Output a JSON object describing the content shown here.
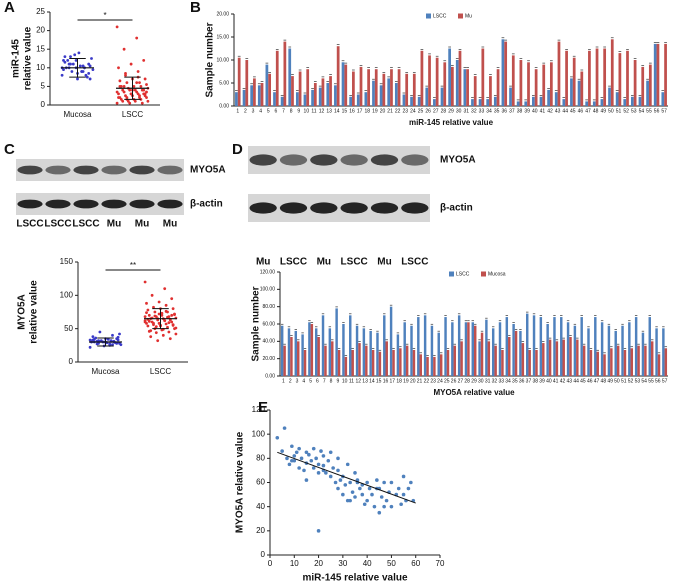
{
  "chart_data": [
    {
      "type": "strip",
      "panel": "A",
      "ylabel": [
        "miR-145",
        "relative value"
      ],
      "categories": [
        "Mucosa",
        "LSCC"
      ],
      "ylim": [
        0,
        25
      ],
      "yticks": [
        0,
        5,
        10,
        15,
        20,
        25
      ],
      "significance": "*",
      "groups": [
        {
          "color": "#3a3ac8",
          "mean": 10,
          "sd": 2.5,
          "values": [
            8,
            9,
            10,
            11,
            12,
            9.5,
            10.5,
            13,
            7,
            8.5,
            11.5,
            10,
            9,
            12.5,
            14,
            10,
            8,
            11,
            9.5,
            10.5,
            12,
            7.5,
            13.5,
            10,
            9,
            11,
            8.5,
            10,
            12,
            9,
            11,
            10.5,
            7,
            13,
            10
          ]
        },
        {
          "color": "#e03030",
          "mean": 4.5,
          "sd": 3,
          "values": [
            21,
            18,
            15,
            12,
            11,
            10,
            9,
            8,
            7,
            7,
            6.5,
            6,
            6,
            5.5,
            5,
            5,
            5,
            4.5,
            4.5,
            4,
            4,
            4,
            4,
            3.5,
            3.5,
            3.5,
            3,
            3,
            3,
            3,
            2.5,
            2.5,
            2.5,
            2,
            2,
            2,
            2,
            1.5,
            1.5,
            1.5,
            1,
            1,
            1,
            1,
            0.5,
            0.5,
            0.5,
            6,
            5,
            4,
            3,
            2,
            7.5,
            8.5,
            3,
            4,
            5,
            2.5,
            1.5,
            3.5
          ]
        }
      ]
    },
    {
      "type": "bar",
      "panel": "B",
      "ylabel": "Sample number",
      "xlabel": "miR-145 relative value",
      "categories": [
        "1",
        "2",
        "3",
        "4",
        "5",
        "6",
        "7",
        "8",
        "9",
        "10",
        "11",
        "12",
        "13",
        "14",
        "15",
        "16",
        "17",
        "18",
        "19",
        "20",
        "21",
        "22",
        "23",
        "24",
        "25",
        "26",
        "27",
        "28",
        "29",
        "30",
        "31",
        "32",
        "33",
        "34",
        "35",
        "36",
        "37",
        "38",
        "39",
        "40",
        "41",
        "42",
        "43",
        "44",
        "45",
        "46",
        "47",
        "48",
        "49",
        "50",
        "51",
        "52",
        "53",
        "54",
        "55",
        "56",
        "57"
      ],
      "ylim": [
        0,
        20
      ],
      "yticks": [
        {
          "value": 0,
          "label": "0.00"
        },
        {
          "value": 5,
          "label": "5.00"
        },
        {
          "value": 10,
          "label": "10.00"
        },
        {
          "value": 15,
          "label": "15.00"
        },
        {
          "value": 20,
          "label": "20.00"
        }
      ],
      "series": [
        {
          "name": "LSCC",
          "color": "#4f81bd",
          "values": [
            3,
            3.5,
            4.5,
            4.5,
            9,
            3,
            2,
            12.5,
            3,
            2.5,
            3.5,
            4,
            5,
            4.5,
            9.5,
            2,
            2.5,
            3,
            5.5,
            4.5,
            6,
            5,
            2.5,
            2,
            2,
            4,
            1.5,
            4,
            12.5,
            10,
            8,
            1.5,
            1.5,
            1.5,
            2,
            14.5,
            4,
            1,
            1,
            2,
            2,
            3.5,
            3,
            1.5,
            6,
            5.5,
            1,
            1,
            1.5,
            4,
            3,
            1.5,
            2,
            2,
            5.5,
            13.5,
            3
          ]
        },
        {
          "name": "Mu",
          "color": "#c0504d",
          "values": [
            10.5,
            10,
            6,
            5,
            7,
            12,
            14,
            6.5,
            7.5,
            8,
            5,
            6,
            6.5,
            13,
            9,
            7.5,
            8.5,
            8,
            8,
            7,
            8,
            8,
            7,
            7,
            12,
            11,
            10.5,
            9.5,
            8.5,
            12,
            8,
            6.5,
            12.5,
            6.5,
            8,
            14,
            11,
            10,
            9.5,
            8,
            9,
            9.5,
            14,
            12,
            10.5,
            7.5,
            12,
            12.5,
            12.5,
            14.5,
            11.5,
            12,
            10,
            8.5,
            9,
            13.5,
            13.5
          ]
        }
      ]
    },
    {
      "type": "strip",
      "ylabel": [
        "MYO5A",
        "relative value"
      ],
      "categories": [
        "Mucosa",
        "LSCC"
      ],
      "ylim": [
        0,
        150
      ],
      "yticks": [
        0,
        50,
        100,
        150
      ],
      "significance": "**",
      "groups": [
        {
          "color": "#3a3ac8",
          "mean": 30,
          "sd": 6,
          "values": [
            22,
            25,
            27,
            28,
            30,
            30,
            31,
            32,
            33,
            35,
            38,
            40,
            45,
            28,
            29,
            30,
            31,
            32,
            26,
            34,
            36,
            29,
            30,
            33,
            27,
            31,
            35,
            24,
            30,
            32,
            28,
            37,
            30,
            33,
            26,
            31,
            42,
            29,
            34,
            30
          ]
        },
        {
          "color": "#e03030",
          "mean": 65,
          "sd": 15,
          "values": [
            120,
            110,
            100,
            95,
            90,
            88,
            85,
            82,
            80,
            80,
            78,
            75,
            75,
            72,
            70,
            70,
            68,
            68,
            66,
            65,
            65,
            64,
            63,
            62,
            62,
            60,
            60,
            58,
            58,
            57,
            56,
            55,
            55,
            54,
            52,
            50,
            50,
            48,
            46,
            45,
            44,
            42,
            40,
            38,
            35,
            32,
            60,
            62,
            66,
            70,
            72,
            74,
            76,
            58,
            56,
            54,
            64,
            67,
            69,
            71,
            73,
            61,
            59,
            53,
            51,
            49,
            47,
            63,
            65,
            68
          ]
        }
      ]
    },
    {
      "type": "bar",
      "ylabel": "Sample number",
      "xlabel": "MYO5A relative value",
      "categories": [
        "1",
        "2",
        "3",
        "4",
        "5",
        "6",
        "7",
        "8",
        "9",
        "10",
        "11",
        "12",
        "13",
        "14",
        "15",
        "16",
        "17",
        "18",
        "19",
        "20",
        "21",
        "22",
        "23",
        "24",
        "25",
        "26",
        "27",
        "28",
        "29",
        "30",
        "31",
        "32",
        "33",
        "34",
        "35",
        "36",
        "37",
        "38",
        "39",
        "40",
        "41",
        "42",
        "43",
        "44",
        "45",
        "46",
        "47",
        "48",
        "49",
        "50",
        "51",
        "52",
        "53",
        "54",
        "55",
        "56",
        "57"
      ],
      "ylim": [
        0,
        120
      ],
      "yticks": [
        {
          "value": 0,
          "label": "0.00"
        },
        {
          "value": 20,
          "label": "20.00"
        },
        {
          "value": 40,
          "label": "40.00"
        },
        {
          "value": 60,
          "label": "60.00"
        },
        {
          "value": 80,
          "label": "80.00"
        },
        {
          "value": 100,
          "label": "100.00"
        },
        {
          "value": 120,
          "label": "120.00"
        }
      ],
      "series": [
        {
          "name": "LSCC",
          "color": "#4f81bd",
          "values": [
            58,
            55,
            52,
            48,
            62,
            55,
            70,
            55,
            78,
            60,
            70,
            58,
            55,
            52,
            50,
            70,
            80,
            48,
            62,
            58,
            68,
            70,
            58,
            50,
            68,
            62,
            70,
            62,
            62,
            40,
            65,
            55,
            62,
            68,
            60,
            52,
            72,
            70,
            68,
            60,
            68,
            68,
            62,
            58,
            68,
            55,
            68,
            62,
            58,
            52,
            58,
            62,
            68,
            50,
            68,
            55,
            55
          ]
        },
        {
          "name": "Mucosa",
          "color": "#c0504d",
          "values": [
            35,
            45,
            40,
            30,
            60,
            45,
            35,
            40,
            30,
            22,
            30,
            38,
            35,
            30,
            28,
            40,
            30,
            32,
            35,
            30,
            25,
            22,
            22,
            25,
            30,
            35,
            40,
            62,
            58,
            50,
            40,
            35,
            30,
            45,
            52,
            38,
            30,
            30,
            38,
            42,
            40,
            42,
            45,
            42,
            35,
            30,
            28,
            25,
            32,
            35,
            30,
            32,
            35,
            35,
            40,
            25,
            32
          ]
        }
      ]
    },
    {
      "type": "scatter",
      "panel": "E",
      "xlabel": "miR-145 relative value",
      "ylabel": "MYO5A relative value",
      "color": "#4f81bd",
      "xlim": [
        0,
        70
      ],
      "xticks": [
        0,
        10,
        20,
        30,
        40,
        50,
        60,
        70
      ],
      "ylim": [
        0,
        120
      ],
      "yticks": [
        0,
        20,
        40,
        60,
        80,
        100,
        120
      ],
      "x": [
        3,
        5,
        6,
        7,
        8,
        9,
        10,
        10,
        11,
        12,
        12,
        13,
        14,
        15,
        15,
        16,
        17,
        18,
        18,
        19,
        20,
        20,
        21,
        22,
        22,
        23,
        24,
        25,
        25,
        26,
        27,
        28,
        28,
        29,
        30,
        30,
        31,
        32,
        32,
        33,
        34,
        35,
        35,
        36,
        37,
        38,
        38,
        39,
        40,
        40,
        41,
        42,
        43,
        44,
        45,
        45,
        46,
        47,
        48,
        49,
        50,
        50,
        52,
        53,
        54,
        55,
        55,
        56,
        57,
        58,
        59,
        20,
        22,
        28,
        15,
        9,
        33,
        44,
        36,
        47
      ],
      "y": [
        97,
        86,
        105,
        80,
        75,
        90,
        82,
        78,
        85,
        72,
        88,
        80,
        70,
        85,
        76,
        83,
        78,
        88,
        72,
        80,
        75,
        20,
        86,
        70,
        82,
        68,
        78,
        65,
        85,
        72,
        60,
        70,
        55,
        62,
        50,
        65,
        58,
        75,
        45,
        60,
        52,
        48,
        68,
        62,
        55,
        50,
        58,
        42,
        60,
        45,
        55,
        50,
        40,
        62,
        35,
        55,
        48,
        60,
        45,
        52,
        40,
        60,
        50,
        55,
        42,
        50,
        65,
        45,
        55,
        60,
        45,
        68,
        74,
        80,
        62,
        78,
        45,
        55,
        60,
        40
      ],
      "trendline": {
        "x": [
          3,
          60
        ],
        "y": [
          85,
          43
        ]
      }
    }
  ],
  "blots": [
    {
      "panel": "C",
      "bands": [
        "MYO5A",
        "β-actin"
      ],
      "lanes": [
        "LSCC",
        "LSCC",
        "LSCC",
        "Mu",
        "Mu",
        "Mu"
      ]
    },
    {
      "panel": "D",
      "bands": [
        "MYO5A",
        "β-actin"
      ],
      "lanes": [
        "Mu",
        "LSCC",
        "Mu",
        "LSCC",
        "Mu",
        "LSCC"
      ]
    }
  ]
}
